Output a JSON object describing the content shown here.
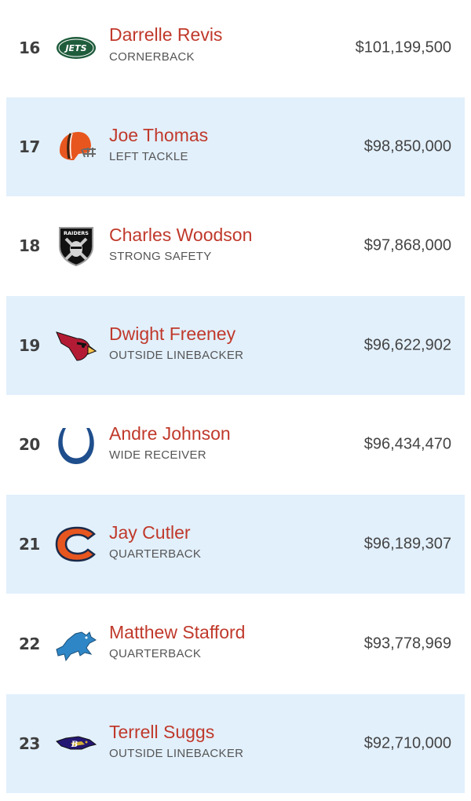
{
  "players": [
    {
      "rank": "16",
      "name": "Darrelle Revis",
      "position": "CORNERBACK",
      "salary": "$101,199,500",
      "team_icon": "jets-logo-icon"
    },
    {
      "rank": "17",
      "name": "Joe Thomas",
      "position": "LEFT TACKLE",
      "salary": "$98,850,000",
      "team_icon": "browns-helmet-icon"
    },
    {
      "rank": "18",
      "name": "Charles Woodson",
      "position": "STRONG SAFETY",
      "salary": "$97,868,000",
      "team_icon": "raiders-shield-icon"
    },
    {
      "rank": "19",
      "name": "Dwight Freeney",
      "position": "OUTSIDE LINEBACKER",
      "salary": "$96,622,902",
      "team_icon": "cardinals-head-icon"
    },
    {
      "rank": "20",
      "name": "Andre Johnson",
      "position": "WIDE RECEIVER",
      "salary": "$96,434,470",
      "team_icon": "colts-horseshoe-icon"
    },
    {
      "rank": "21",
      "name": "Jay Cutler",
      "position": "QUARTERBACK",
      "salary": "$96,189,307",
      "team_icon": "bears-c-icon"
    },
    {
      "rank": "22",
      "name": "Matthew Stafford",
      "position": "QUARTERBACK",
      "salary": "$93,778,969",
      "team_icon": "lions-logo-icon"
    },
    {
      "rank": "23",
      "name": "Terrell Suggs",
      "position": "OUTSIDE LINEBACKER",
      "salary": "$92,710,000",
      "team_icon": "ravens-head-icon"
    }
  ],
  "logos": {
    "jets_text": "JETS",
    "raiders_text": "RAIDERS"
  },
  "colors": {
    "name": "#c0392b",
    "alt_row": "#e2f0fc"
  }
}
